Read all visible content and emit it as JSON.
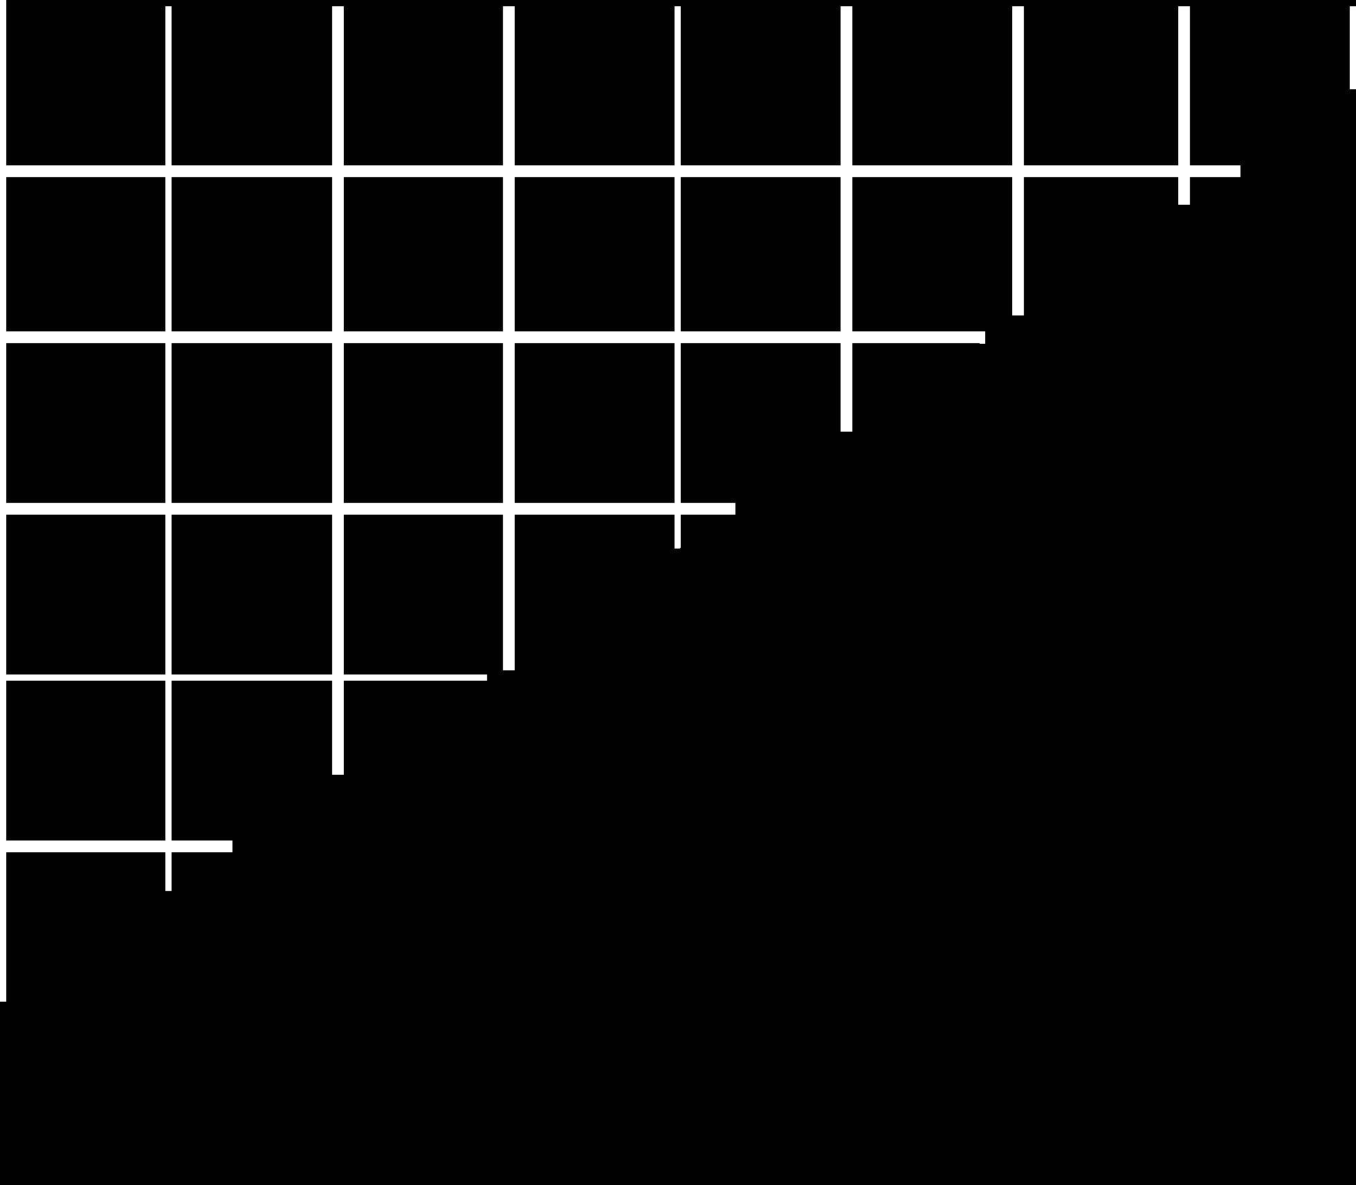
{
  "palette": {
    "background": "#000000",
    "line": "#ffffff"
  },
  "pattern": {
    "description_type": "staircase-grid",
    "columns": 8,
    "rows": 6,
    "cells_per_row": [
      8,
      7,
      6,
      5,
      4,
      3
    ]
  }
}
